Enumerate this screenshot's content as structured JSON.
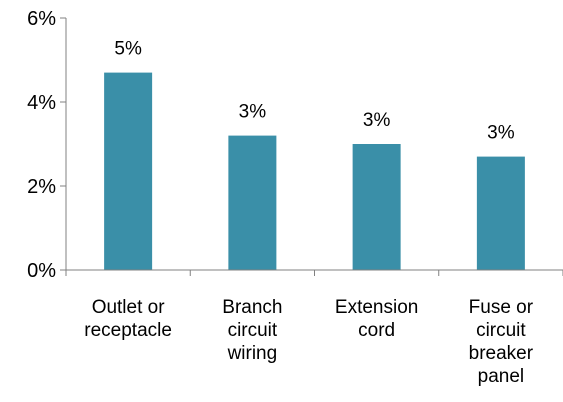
{
  "chart_data": {
    "type": "bar",
    "categories": [
      [
        "Outlet or",
        "receptacle"
      ],
      [
        "Branch",
        "circuit",
        "wiring"
      ],
      [
        "Extension",
        "cord"
      ],
      [
        "Fuse or",
        "circuit",
        "breaker",
        "panel"
      ]
    ],
    "values": [
      4.7,
      3.2,
      3.0,
      2.7
    ],
    "data_labels": [
      "5%",
      "3%",
      "3%",
      "3%"
    ],
    "y_ticks": [
      0,
      2,
      4,
      6
    ],
    "y_tick_labels": [
      "0%",
      "2%",
      "4%",
      "6%"
    ],
    "ylim": [
      0,
      6
    ],
    "title": "",
    "xlabel": "",
    "ylabel": "",
    "grid": false,
    "bar_color": "#3a8fa8",
    "axis_color": "#808080"
  }
}
